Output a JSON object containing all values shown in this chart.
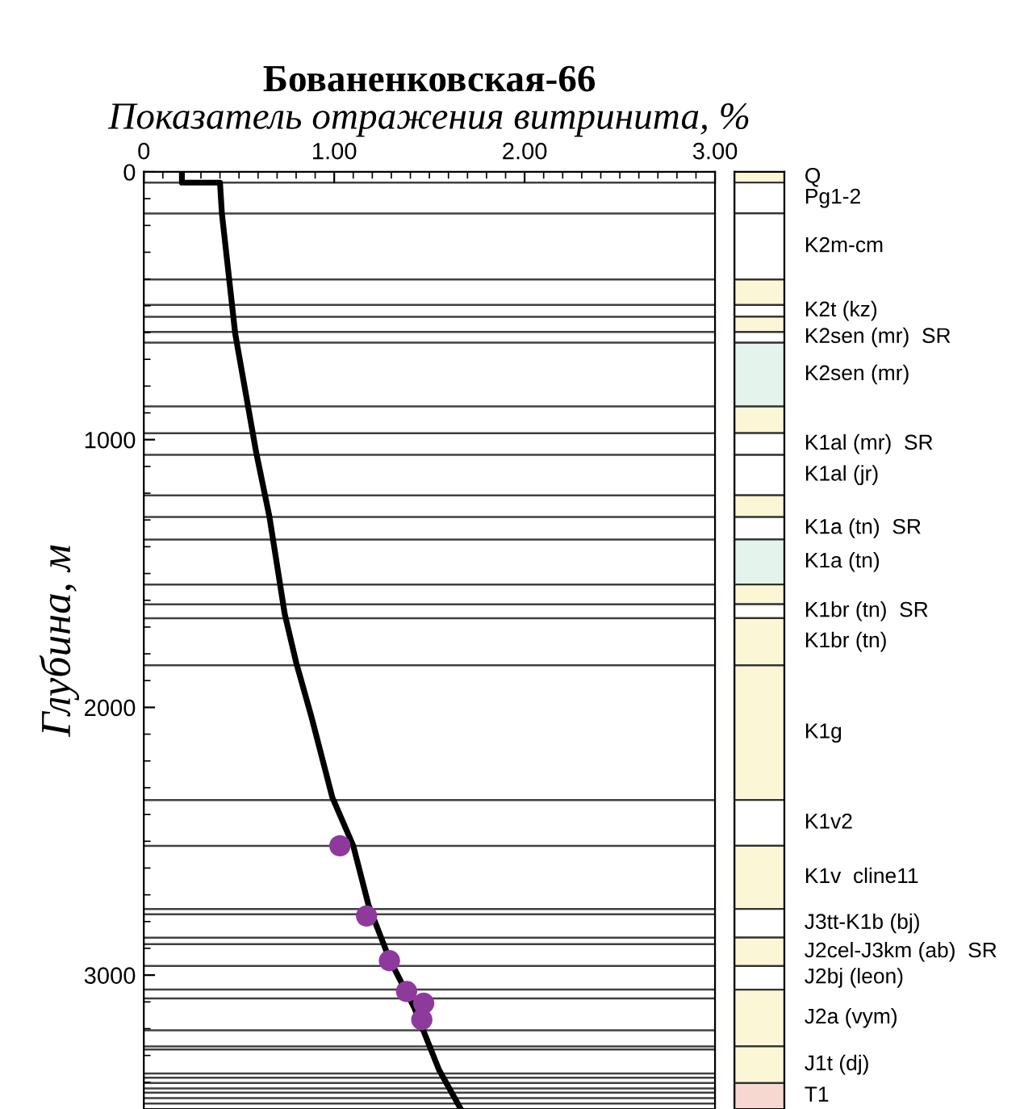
{
  "chart_data": [
    {
      "type": "line",
      "title": "Бованенковская-66",
      "xlabel": "Показатель отражения витринита, %",
      "ylabel": "Глубина, м",
      "xlim": [
        0,
        3
      ],
      "xticks": [
        0,
        {
          "value": 1,
          "label": "1.00"
        },
        {
          "value": 2,
          "label": "2.00"
        },
        {
          "value": 3,
          "label": "3.00"
        }
      ],
      "ylim": [
        3500,
        0
      ],
      "yticks": [
        0,
        1000,
        2000,
        3000
      ],
      "grid": false,
      "legend": false,
      "series": [
        {
          "type": "line",
          "color": "#000000",
          "marker": "none",
          "line_style": "solid",
          "x": [
            0.2,
            0.2,
            0.4,
            0.41,
            0.48,
            0.59,
            0.66,
            0.74,
            0.8,
            0.88,
            0.99,
            1.1,
            1.18,
            1.29,
            1.42,
            1.55,
            1.66
          ],
          "values": [
            0,
            40,
            40,
            155,
            604,
            1047,
            1289,
            1651,
            1832,
            2034,
            2336,
            2517,
            2738,
            2940,
            3121,
            3353,
            3494
          ]
        },
        {
          "type": "scatter",
          "color": "#8e3a9d",
          "marker": "circle",
          "x": [
            1.03,
            1.17,
            1.29,
            1.38,
            1.47,
            1.46
          ],
          "values": [
            2517,
            2779,
            2946,
            3061,
            3105,
            3166
          ]
        }
      ],
      "ref_lines": [
        {
          "axis": "y",
          "value": 40,
          "color": "#404040"
        },
        {
          "axis": "y",
          "value": 155,
          "color": "#404040"
        },
        {
          "axis": "y",
          "value": 402,
          "color": "#404040"
        },
        {
          "axis": "y",
          "value": 497,
          "color": "#404040"
        },
        {
          "axis": "y",
          "value": 541,
          "color": "#404040"
        },
        {
          "axis": "y",
          "value": 598,
          "color": "#404040"
        },
        {
          "axis": "y",
          "value": 638,
          "color": "#404040"
        },
        {
          "axis": "y",
          "value": 876,
          "color": "#404040"
        },
        {
          "axis": "y",
          "value": 976,
          "color": "#404040"
        },
        {
          "axis": "y",
          "value": 1057,
          "color": "#404040"
        },
        {
          "axis": "y",
          "value": 1208,
          "color": "#404040"
        },
        {
          "axis": "y",
          "value": 1289,
          "color": "#404040"
        },
        {
          "axis": "y",
          "value": 1373,
          "color": "#404040"
        },
        {
          "axis": "y",
          "value": 1541,
          "color": "#404040"
        },
        {
          "axis": "y",
          "value": 1615,
          "color": "#404040"
        },
        {
          "axis": "y",
          "value": 1667,
          "color": "#404040"
        },
        {
          "axis": "y",
          "value": 1843,
          "color": "#404040"
        },
        {
          "axis": "y",
          "value": 2346,
          "color": "#404040"
        },
        {
          "axis": "y",
          "value": 2517,
          "color": "#404040"
        },
        {
          "axis": "y",
          "value": 2753,
          "color": "#404040"
        },
        {
          "axis": "y",
          "value": 2773,
          "color": "#404040"
        },
        {
          "axis": "y",
          "value": 2860,
          "color": "#404040"
        },
        {
          "axis": "y",
          "value": 2884,
          "color": "#404040"
        },
        {
          "axis": "y",
          "value": 2966,
          "color": "#404040"
        },
        {
          "axis": "y",
          "value": 3054,
          "color": "#404040"
        },
        {
          "axis": "y",
          "value": 3087,
          "color": "#404040"
        },
        {
          "axis": "y",
          "value": 3206,
          "color": "#404040"
        },
        {
          "axis": "y",
          "value": 3266,
          "color": "#404040"
        },
        {
          "axis": "y",
          "value": 3278,
          "color": "#404040"
        },
        {
          "axis": "y",
          "value": 3367,
          "color": "#404040"
        },
        {
          "axis": "y",
          "value": 3383,
          "color": "#404040"
        },
        {
          "axis": "y",
          "value": 3403,
          "color": "#404040"
        },
        {
          "axis": "y",
          "value": 3423,
          "color": "#404040"
        },
        {
          "axis": "y",
          "value": 3439,
          "color": "#404040"
        },
        {
          "axis": "y",
          "value": 3459,
          "color": "#404040"
        },
        {
          "axis": "y",
          "value": 3480,
          "color": "#404040"
        }
      ]
    },
    {
      "type": "bar",
      "stacked": true,
      "categories": [
        null
      ],
      "ylim": [
        3500,
        0
      ],
      "tick_labels": false,
      "series": [
        {
          "name": "Q",
          "color": "#fbf6d6",
          "values": [
            40
          ]
        },
        {
          "name": "Pg1-2",
          "color": "#ffffff",
          "values": [
            115
          ]
        },
        {
          "name": "K2m-cm",
          "color": "#ffffff",
          "values": [
            247
          ]
        },
        {
          "color": "#fbf6d6",
          "values": [
            95
          ]
        },
        {
          "name": "K2t (kz)",
          "color": "#ffffff",
          "values": [
            44
          ]
        },
        {
          "color": "#fbf6d6",
          "values": [
            57
          ]
        },
        {
          "name": "K2sen (mr)  SR",
          "color": "#ffffff",
          "values": [
            40
          ]
        },
        {
          "name": "K2sen (mr)",
          "color": "#e4f3ec",
          "values": [
            238
          ]
        },
        {
          "color": "#fbf6d6",
          "values": [
            100
          ]
        },
        {
          "name": "K1al (mr)  SR",
          "color": "#ffffff",
          "values": [
            81
          ]
        },
        {
          "name": "K1al (jr)",
          "color": "#ffffff",
          "values": [
            151
          ]
        },
        {
          "color": "#fbf6d6",
          "values": [
            81
          ]
        },
        {
          "name": "K1a (tn)  SR",
          "color": "#ffffff",
          "values": [
            84
          ]
        },
        {
          "name": "K1a (tn)",
          "color": "#e4f3ec",
          "values": [
            168
          ]
        },
        {
          "color": "#fbf6d6",
          "values": [
            74
          ]
        },
        {
          "name": "K1br (tn)  SR",
          "color": "#ffffff",
          "values": [
            52
          ]
        },
        {
          "name": "K1br (tn)",
          "color": "#fbf6d6",
          "values": [
            176
          ]
        },
        {
          "name": "K1g",
          "color": "#fbf6d6",
          "values": [
            503
          ]
        },
        {
          "name": "K1v2",
          "color": "#ffffff",
          "values": [
            171
          ]
        },
        {
          "name": "K1v  cline11",
          "color": "#fbf6d6",
          "values": [
            236
          ]
        },
        {
          "name": "J3tt-K1b (bj)",
          "color": "#ffffff",
          "values": [
            107
          ]
        },
        {
          "name": "J2cel-J3km (ab)  SR",
          "color": "#fbf6d6",
          "values": [
            106
          ]
        },
        {
          "name": "J2bj (leon)",
          "color": "#ffffff",
          "values": [
            88
          ]
        },
        {
          "name": "J2a (vym)",
          "color": "#fbf6d6",
          "values": [
            212
          ]
        },
        {
          "name": "J1t (dj)",
          "color": "#fbf6d6",
          "values": [
            137
          ]
        },
        {
          "name": "T1",
          "color": "#f6d8d0",
          "values": [
            97
          ]
        }
      ]
    }
  ]
}
